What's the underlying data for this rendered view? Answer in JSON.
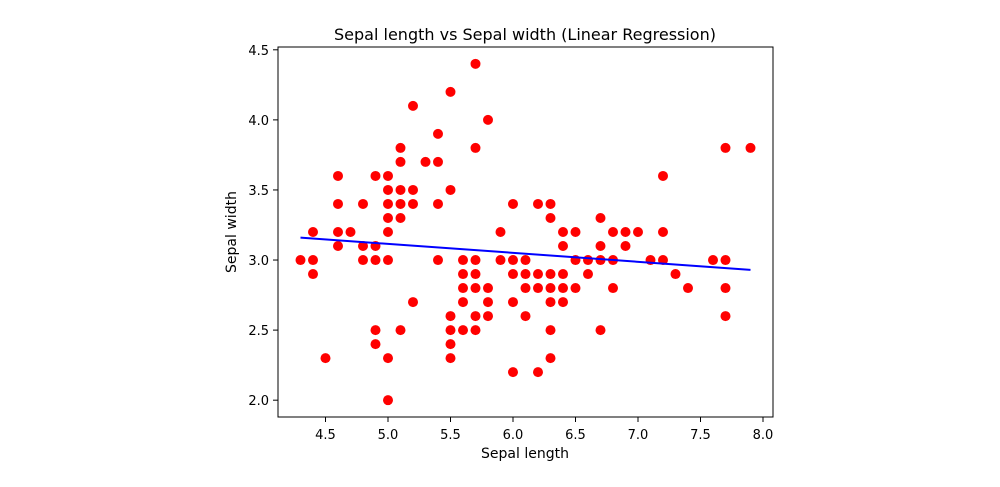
{
  "chart_data": {
    "type": "scatter",
    "title": "Sepal length vs Sepal width (Linear Regression)",
    "xlabel": "Sepal length",
    "ylabel": "Sepal width",
    "xlim": [
      4.12,
      8.08
    ],
    "ylim": [
      1.88,
      4.52
    ],
    "xticks": [
      4.5,
      5.0,
      5.5,
      6.0,
      6.5,
      7.0,
      7.5,
      8.0
    ],
    "yticks": [
      2.0,
      2.5,
      3.0,
      3.5,
      4.0,
      4.5
    ],
    "xtick_labels": [
      "4.5",
      "5.0",
      "5.5",
      "6.0",
      "6.5",
      "7.0",
      "7.5",
      "8.0"
    ],
    "ytick_labels": [
      "2.0",
      "2.5",
      "3.0",
      "3.5",
      "4.0",
      "4.5"
    ],
    "grid": false,
    "point_color": "#ff0000",
    "line_color": "#0000ff",
    "points": [
      [
        4.3,
        3.0
      ],
      [
        4.4,
        2.9
      ],
      [
        4.4,
        3.0
      ],
      [
        4.4,
        3.2
      ],
      [
        4.5,
        2.3
      ],
      [
        4.6,
        3.1
      ],
      [
        4.6,
        3.2
      ],
      [
        4.6,
        3.4
      ],
      [
        4.6,
        3.6
      ],
      [
        4.7,
        3.2
      ],
      [
        4.8,
        3.0
      ],
      [
        4.8,
        3.1
      ],
      [
        4.8,
        3.4
      ],
      [
        4.9,
        2.4
      ],
      [
        4.9,
        2.5
      ],
      [
        4.9,
        3.0
      ],
      [
        4.9,
        3.1
      ],
      [
        4.9,
        3.6
      ],
      [
        5.0,
        2.0
      ],
      [
        5.0,
        2.3
      ],
      [
        5.0,
        3.0
      ],
      [
        5.0,
        3.2
      ],
      [
        5.0,
        3.3
      ],
      [
        5.0,
        3.4
      ],
      [
        5.0,
        3.5
      ],
      [
        5.0,
        3.6
      ],
      [
        5.1,
        2.5
      ],
      [
        5.1,
        3.3
      ],
      [
        5.1,
        3.4
      ],
      [
        5.1,
        3.5
      ],
      [
        5.1,
        3.7
      ],
      [
        5.1,
        3.8
      ],
      [
        5.2,
        2.7
      ],
      [
        5.2,
        3.4
      ],
      [
        5.2,
        3.5
      ],
      [
        5.2,
        4.1
      ],
      [
        5.3,
        3.7
      ],
      [
        5.4,
        3.0
      ],
      [
        5.4,
        3.4
      ],
      [
        5.4,
        3.7
      ],
      [
        5.4,
        3.9
      ],
      [
        5.5,
        2.3
      ],
      [
        5.5,
        2.4
      ],
      [
        5.5,
        2.5
      ],
      [
        5.5,
        2.6
      ],
      [
        5.5,
        3.5
      ],
      [
        5.5,
        4.2
      ],
      [
        5.6,
        2.5
      ],
      [
        5.6,
        2.7
      ],
      [
        5.6,
        2.8
      ],
      [
        5.6,
        2.9
      ],
      [
        5.6,
        3.0
      ],
      [
        5.7,
        2.5
      ],
      [
        5.7,
        2.6
      ],
      [
        5.7,
        2.8
      ],
      [
        5.7,
        2.9
      ],
      [
        5.7,
        3.0
      ],
      [
        5.7,
        3.8
      ],
      [
        5.7,
        4.4
      ],
      [
        5.8,
        2.6
      ],
      [
        5.8,
        2.7
      ],
      [
        5.8,
        2.8
      ],
      [
        5.8,
        4.0
      ],
      [
        5.9,
        3.0
      ],
      [
        5.9,
        3.2
      ],
      [
        6.0,
        2.2
      ],
      [
        6.0,
        2.7
      ],
      [
        6.0,
        2.9
      ],
      [
        6.0,
        3.0
      ],
      [
        6.0,
        3.4
      ],
      [
        6.1,
        2.6
      ],
      [
        6.1,
        2.8
      ],
      [
        6.1,
        2.9
      ],
      [
        6.1,
        3.0
      ],
      [
        6.2,
        2.2
      ],
      [
        6.2,
        2.8
      ],
      [
        6.2,
        2.9
      ],
      [
        6.2,
        3.4
      ],
      [
        6.3,
        2.3
      ],
      [
        6.3,
        2.5
      ],
      [
        6.3,
        2.7
      ],
      [
        6.3,
        2.8
      ],
      [
        6.3,
        2.9
      ],
      [
        6.3,
        3.3
      ],
      [
        6.3,
        3.4
      ],
      [
        6.4,
        2.7
      ],
      [
        6.4,
        2.8
      ],
      [
        6.4,
        2.9
      ],
      [
        6.4,
        3.1
      ],
      [
        6.4,
        3.2
      ],
      [
        6.5,
        2.8
      ],
      [
        6.5,
        3.0
      ],
      [
        6.5,
        3.2
      ],
      [
        6.6,
        2.9
      ],
      [
        6.6,
        3.0
      ],
      [
        6.7,
        2.5
      ],
      [
        6.7,
        3.0
      ],
      [
        6.7,
        3.1
      ],
      [
        6.7,
        3.3
      ],
      [
        6.8,
        2.8
      ],
      [
        6.8,
        3.0
      ],
      [
        6.8,
        3.2
      ],
      [
        6.9,
        3.1
      ],
      [
        6.9,
        3.2
      ],
      [
        7.0,
        3.2
      ],
      [
        7.1,
        3.0
      ],
      [
        7.2,
        3.0
      ],
      [
        7.2,
        3.2
      ],
      [
        7.2,
        3.6
      ],
      [
        7.3,
        2.9
      ],
      [
        7.4,
        2.8
      ],
      [
        7.6,
        3.0
      ],
      [
        7.7,
        2.6
      ],
      [
        7.7,
        2.8
      ],
      [
        7.7,
        3.0
      ],
      [
        7.7,
        3.8
      ],
      [
        7.9,
        3.8
      ]
    ],
    "regression_line": {
      "x": [
        4.3,
        7.9
      ],
      "y": [
        3.16,
        2.93
      ]
    }
  }
}
